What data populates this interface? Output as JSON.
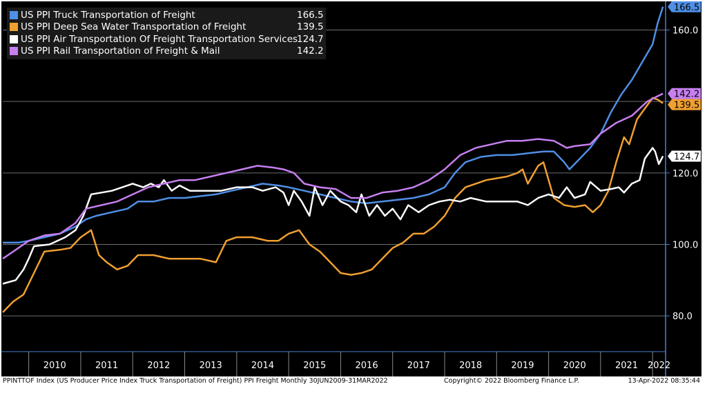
{
  "chart_data": {
    "type": "line",
    "ylim": [
      70,
      168
    ],
    "yticks": [
      80,
      100,
      120,
      140,
      160
    ],
    "ytick_labels": [
      "80.0",
      "100.0",
      "120.0",
      "140.0",
      "160.0"
    ],
    "x_categories": [
      "2010",
      "2011",
      "2012",
      "2013",
      "2014",
      "2015",
      "2016",
      "2017",
      "2018",
      "2019",
      "2020",
      "2021",
      "2022"
    ],
    "x_range": [
      2009.5,
      2022.25
    ],
    "grid": "horizontal",
    "legend": "top-left",
    "series": [
      {
        "name": "US PPI Truck Transportation of Freight",
        "last": "166.5",
        "color": "#4f8fe6",
        "points": [
          [
            2009.5,
            100.5
          ],
          [
            2009.8,
            100.5
          ],
          [
            2010.0,
            101.0
          ],
          [
            2010.3,
            102.0
          ],
          [
            2010.6,
            103.0
          ],
          [
            2010.9,
            105.0
          ],
          [
            2011.1,
            107.0
          ],
          [
            2011.3,
            108.0
          ],
          [
            2011.6,
            109.0
          ],
          [
            2011.9,
            110.0
          ],
          [
            2012.1,
            112.0
          ],
          [
            2012.4,
            112.0
          ],
          [
            2012.7,
            113.0
          ],
          [
            2013.0,
            113.0
          ],
          [
            2013.3,
            113.5
          ],
          [
            2013.6,
            114.0
          ],
          [
            2013.9,
            115.0
          ],
          [
            2014.2,
            116.0
          ],
          [
            2014.5,
            117.0
          ],
          [
            2014.8,
            116.5
          ],
          [
            2015.0,
            116.0
          ],
          [
            2015.3,
            115.0
          ],
          [
            2015.6,
            114.0
          ],
          [
            2015.9,
            113.0
          ],
          [
            2016.2,
            112.0
          ],
          [
            2016.5,
            111.5
          ],
          [
            2016.8,
            112.0
          ],
          [
            2017.1,
            112.5
          ],
          [
            2017.4,
            113.0
          ],
          [
            2017.7,
            114.0
          ],
          [
            2018.0,
            116.0
          ],
          [
            2018.2,
            120.0
          ],
          [
            2018.4,
            123.0
          ],
          [
            2018.7,
            124.5
          ],
          [
            2019.0,
            125.0
          ],
          [
            2019.3,
            125.0
          ],
          [
            2019.6,
            125.5
          ],
          [
            2019.9,
            126.0
          ],
          [
            2020.1,
            126.0
          ],
          [
            2020.3,
            123.0
          ],
          [
            2020.4,
            121.0
          ],
          [
            2020.6,
            124.0
          ],
          [
            2020.8,
            127.0
          ],
          [
            2021.0,
            131.0
          ],
          [
            2021.2,
            137.0
          ],
          [
            2021.4,
            142.0
          ],
          [
            2021.6,
            146.0
          ],
          [
            2021.8,
            151.0
          ],
          [
            2022.0,
            156.0
          ],
          [
            2022.1,
            162.0
          ],
          [
            2022.2,
            166.5
          ]
        ]
      },
      {
        "name": "US PPI Deep Sea Water Transportation of Freight",
        "last": "139.5",
        "color": "#f0a030",
        "points": [
          [
            2009.5,
            81.0
          ],
          [
            2009.7,
            84.0
          ],
          [
            2009.9,
            86.0
          ],
          [
            2010.1,
            92.0
          ],
          [
            2010.3,
            98.0
          ],
          [
            2010.6,
            98.5
          ],
          [
            2010.8,
            99.0
          ],
          [
            2011.0,
            102.0
          ],
          [
            2011.2,
            104.0
          ],
          [
            2011.35,
            97.0
          ],
          [
            2011.5,
            95.0
          ],
          [
            2011.7,
            93.0
          ],
          [
            2011.9,
            94.0
          ],
          [
            2012.1,
            97.0
          ],
          [
            2012.4,
            97.0
          ],
          [
            2012.7,
            96.0
          ],
          [
            2013.0,
            96.0
          ],
          [
            2013.3,
            96.0
          ],
          [
            2013.6,
            95.0
          ],
          [
            2013.8,
            101.0
          ],
          [
            2014.0,
            102.0
          ],
          [
            2014.3,
            102.0
          ],
          [
            2014.6,
            101.0
          ],
          [
            2014.8,
            101.0
          ],
          [
            2015.0,
            103.0
          ],
          [
            2015.2,
            104.0
          ],
          [
            2015.4,
            100.0
          ],
          [
            2015.6,
            98.0
          ],
          [
            2015.8,
            95.0
          ],
          [
            2016.0,
            92.0
          ],
          [
            2016.2,
            91.5
          ],
          [
            2016.4,
            92.0
          ],
          [
            2016.6,
            93.0
          ],
          [
            2016.8,
            96.0
          ],
          [
            2017.0,
            99.0
          ],
          [
            2017.2,
            100.5
          ],
          [
            2017.4,
            103.0
          ],
          [
            2017.6,
            103.0
          ],
          [
            2017.8,
            105.0
          ],
          [
            2018.0,
            108.0
          ],
          [
            2018.2,
            113.0
          ],
          [
            2018.4,
            116.0
          ],
          [
            2018.6,
            117.0
          ],
          [
            2018.8,
            118.0
          ],
          [
            2019.0,
            118.5
          ],
          [
            2019.2,
            119.0
          ],
          [
            2019.4,
            120.0
          ],
          [
            2019.5,
            121.0
          ],
          [
            2019.6,
            117.0
          ],
          [
            2019.8,
            122.0
          ],
          [
            2019.9,
            123.0
          ],
          [
            2020.0,
            118.0
          ],
          [
            2020.1,
            113.0
          ],
          [
            2020.3,
            111.0
          ],
          [
            2020.5,
            110.5
          ],
          [
            2020.7,
            111.0
          ],
          [
            2020.85,
            109.0
          ],
          [
            2021.0,
            111.0
          ],
          [
            2021.15,
            115.0
          ],
          [
            2021.3,
            123.0
          ],
          [
            2021.45,
            130.0
          ],
          [
            2021.55,
            128.0
          ],
          [
            2021.7,
            135.0
          ],
          [
            2021.85,
            138.0
          ],
          [
            2022.0,
            141.0
          ],
          [
            2022.1,
            140.5
          ],
          [
            2022.2,
            139.5
          ]
        ]
      },
      {
        "name": "US PPI Air Transportation Of Freight Transportation Services",
        "last": "124.7",
        "color": "#ffffff",
        "points": [
          [
            2009.5,
            89.0
          ],
          [
            2009.75,
            90.0
          ],
          [
            2009.9,
            93.0
          ],
          [
            2010.0,
            96.0
          ],
          [
            2010.1,
            99.5
          ],
          [
            2010.4,
            100.0
          ],
          [
            2010.7,
            102.0
          ],
          [
            2010.9,
            104.0
          ],
          [
            2011.05,
            108.0
          ],
          [
            2011.2,
            114.0
          ],
          [
            2011.4,
            114.5
          ],
          [
            2011.6,
            115.0
          ],
          [
            2011.8,
            116.0
          ],
          [
            2012.0,
            117.0
          ],
          [
            2012.2,
            116.0
          ],
          [
            2012.35,
            117.0
          ],
          [
            2012.5,
            116.0
          ],
          [
            2012.6,
            118.0
          ],
          [
            2012.75,
            115.0
          ],
          [
            2012.9,
            116.5
          ],
          [
            2013.1,
            115.0
          ],
          [
            2013.4,
            115.0
          ],
          [
            2013.7,
            115.0
          ],
          [
            2014.0,
            116.0
          ],
          [
            2014.3,
            116.0
          ],
          [
            2014.5,
            115.0
          ],
          [
            2014.75,
            116.0
          ],
          [
            2014.9,
            114.5
          ],
          [
            2015.0,
            111.0
          ],
          [
            2015.1,
            115.0
          ],
          [
            2015.25,
            112.0
          ],
          [
            2015.4,
            108.0
          ],
          [
            2015.5,
            116.0
          ],
          [
            2015.65,
            111.0
          ],
          [
            2015.8,
            115.0
          ],
          [
            2016.0,
            112.0
          ],
          [
            2016.15,
            111.0
          ],
          [
            2016.3,
            109.0
          ],
          [
            2016.4,
            114.0
          ],
          [
            2016.55,
            108.0
          ],
          [
            2016.7,
            111.0
          ],
          [
            2016.85,
            108.0
          ],
          [
            2017.0,
            110.0
          ],
          [
            2017.15,
            107.0
          ],
          [
            2017.3,
            111.0
          ],
          [
            2017.5,
            109.0
          ],
          [
            2017.7,
            111.0
          ],
          [
            2017.9,
            112.0
          ],
          [
            2018.1,
            112.5
          ],
          [
            2018.3,
            112.0
          ],
          [
            2018.5,
            113.0
          ],
          [
            2018.8,
            112.0
          ],
          [
            2019.1,
            112.0
          ],
          [
            2019.4,
            112.0
          ],
          [
            2019.6,
            111.0
          ],
          [
            2019.8,
            113.0
          ],
          [
            2020.0,
            114.0
          ],
          [
            2020.2,
            113.0
          ],
          [
            2020.35,
            116.0
          ],
          [
            2020.5,
            113.0
          ],
          [
            2020.7,
            114.0
          ],
          [
            2020.8,
            117.5
          ],
          [
            2021.0,
            115.0
          ],
          [
            2021.2,
            115.5
          ],
          [
            2021.35,
            116.0
          ],
          [
            2021.45,
            114.5
          ],
          [
            2021.6,
            117.0
          ],
          [
            2021.75,
            118.0
          ],
          [
            2021.85,
            124.0
          ],
          [
            2022.0,
            127.0
          ],
          [
            2022.05,
            126.0
          ],
          [
            2022.12,
            122.5
          ],
          [
            2022.2,
            124.7
          ]
        ]
      },
      {
        "name": "US PPI Rail Transportation of Freight & Mail",
        "last": "142.2",
        "color": "#c77ff0",
        "points": [
          [
            2009.5,
            96.0
          ],
          [
            2009.7,
            98.0
          ],
          [
            2010.0,
            101.0
          ],
          [
            2010.3,
            102.5
          ],
          [
            2010.6,
            103.0
          ],
          [
            2010.9,
            106.0
          ],
          [
            2011.1,
            110.0
          ],
          [
            2011.4,
            111.0
          ],
          [
            2011.7,
            112.0
          ],
          [
            2012.0,
            114.0
          ],
          [
            2012.3,
            116.0
          ],
          [
            2012.6,
            117.0
          ],
          [
            2012.9,
            118.0
          ],
          [
            2013.2,
            118.0
          ],
          [
            2013.5,
            119.0
          ],
          [
            2013.8,
            120.0
          ],
          [
            2014.1,
            121.0
          ],
          [
            2014.4,
            122.0
          ],
          [
            2014.7,
            121.5
          ],
          [
            2014.9,
            121.0
          ],
          [
            2015.1,
            120.0
          ],
          [
            2015.3,
            117.0
          ],
          [
            2015.6,
            116.0
          ],
          [
            2015.9,
            115.5
          ],
          [
            2016.2,
            113.0
          ],
          [
            2016.5,
            113.0
          ],
          [
            2016.8,
            114.5
          ],
          [
            2017.1,
            115.0
          ],
          [
            2017.4,
            116.0
          ],
          [
            2017.7,
            118.0
          ],
          [
            2018.0,
            121.0
          ],
          [
            2018.3,
            125.0
          ],
          [
            2018.6,
            127.0
          ],
          [
            2018.9,
            128.0
          ],
          [
            2019.2,
            129.0
          ],
          [
            2019.5,
            129.0
          ],
          [
            2019.8,
            129.5
          ],
          [
            2020.1,
            129.0
          ],
          [
            2020.35,
            127.0
          ],
          [
            2020.5,
            127.5
          ],
          [
            2020.8,
            128.0
          ],
          [
            2021.0,
            131.0
          ],
          [
            2021.3,
            134.0
          ],
          [
            2021.6,
            136.0
          ],
          [
            2021.9,
            140.0
          ],
          [
            2022.1,
            141.5
          ],
          [
            2022.2,
            142.2
          ]
        ]
      }
    ]
  },
  "footer": {
    "left": "PPINTTOF Index (US Producer Price Index Truck Transportation of Freight) PPI Freight  Monthly 30JUN2009-31MAR2022",
    "center": "Copyright© 2022 Bloomberg Finance L.P.",
    "right": "13-Apr-2022 08:35:44"
  }
}
